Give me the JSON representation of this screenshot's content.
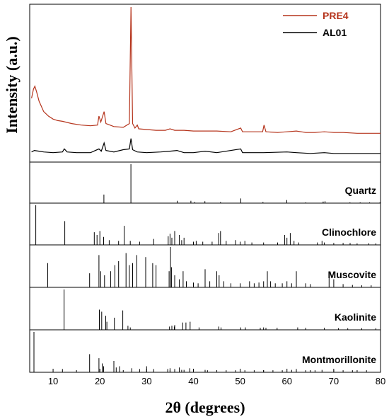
{
  "chart_data": {
    "type": "line",
    "title": "",
    "xlabel": "2θ (degrees)",
    "ylabel": "Intensity (a.u.)",
    "xlim": [
      5,
      80
    ],
    "x_ticks": [
      10,
      20,
      30,
      40,
      50,
      60,
      70,
      80
    ],
    "grid": false,
    "legend": {
      "placement": "top-right",
      "entries": [
        {
          "name": "PRE4",
          "color": "#b5341c"
        },
        {
          "name": "AL01",
          "color": "#000000"
        }
      ]
    },
    "series": [
      {
        "name": "PRE4",
        "color": "#b5341c",
        "points": [
          [
            5.4,
            0.39
          ],
          [
            5.8,
            0.45
          ],
          [
            6.1,
            0.47
          ],
          [
            6.5,
            0.43
          ],
          [
            7,
            0.37
          ],
          [
            8,
            0.3
          ],
          [
            9,
            0.27
          ],
          [
            10,
            0.25
          ],
          [
            11,
            0.24
          ],
          [
            12,
            0.235
          ],
          [
            14,
            0.22
          ],
          [
            16,
            0.21
          ],
          [
            18,
            0.205
          ],
          [
            19.5,
            0.21
          ],
          [
            19.8,
            0.27
          ],
          [
            20.2,
            0.23
          ],
          [
            20.9,
            0.3
          ],
          [
            21.3,
            0.22
          ],
          [
            23,
            0.2
          ],
          [
            25,
            0.195
          ],
          [
            26.3,
            0.22
          ],
          [
            26.65,
            1.0
          ],
          [
            27,
            0.22
          ],
          [
            27.5,
            0.19
          ],
          [
            28,
            0.21
          ],
          [
            28.3,
            0.185
          ],
          [
            30,
            0.18
          ],
          [
            32,
            0.175
          ],
          [
            34,
            0.175
          ],
          [
            35,
            0.185
          ],
          [
            36,
            0.175
          ],
          [
            38,
            0.175
          ],
          [
            40,
            0.17
          ],
          [
            42,
            0.17
          ],
          [
            45,
            0.17
          ],
          [
            48,
            0.165
          ],
          [
            50.1,
            0.19
          ],
          [
            50.5,
            0.165
          ],
          [
            53,
            0.165
          ],
          [
            54.8,
            0.165
          ],
          [
            55.1,
            0.21
          ],
          [
            55.5,
            0.165
          ],
          [
            58,
            0.16
          ],
          [
            60,
            0.165
          ],
          [
            62,
            0.17
          ],
          [
            64,
            0.16
          ],
          [
            66,
            0.16
          ],
          [
            68,
            0.165
          ],
          [
            70,
            0.16
          ],
          [
            72,
            0.16
          ],
          [
            75,
            0.155
          ],
          [
            78,
            0.155
          ],
          [
            80,
            0.155
          ]
        ]
      },
      {
        "name": "AL01",
        "color": "#000000",
        "points": [
          [
            5.4,
            0.03
          ],
          [
            6,
            0.04
          ],
          [
            7,
            0.035
          ],
          [
            8,
            0.03
          ],
          [
            10,
            0.025
          ],
          [
            12,
            0.03
          ],
          [
            12.4,
            0.05
          ],
          [
            13,
            0.03
          ],
          [
            15,
            0.025
          ],
          [
            18,
            0.025
          ],
          [
            19.8,
            0.05
          ],
          [
            20.3,
            0.035
          ],
          [
            20.9,
            0.09
          ],
          [
            21.3,
            0.04
          ],
          [
            23,
            0.03
          ],
          [
            25,
            0.045
          ],
          [
            26.3,
            0.05
          ],
          [
            26.65,
            0.12
          ],
          [
            27,
            0.045
          ],
          [
            28,
            0.03
          ],
          [
            30,
            0.025
          ],
          [
            33,
            0.03
          ],
          [
            35,
            0.035
          ],
          [
            36.5,
            0.04
          ],
          [
            38,
            0.025
          ],
          [
            40,
            0.025
          ],
          [
            42.5,
            0.035
          ],
          [
            45,
            0.025
          ],
          [
            50.1,
            0.05
          ],
          [
            50.5,
            0.025
          ],
          [
            55,
            0.025
          ],
          [
            60,
            0.03
          ],
          [
            62,
            0.025
          ],
          [
            65,
            0.02
          ],
          [
            68,
            0.025
          ],
          [
            70,
            0.02
          ],
          [
            75,
            0.02
          ],
          [
            80,
            0.02
          ]
        ]
      }
    ],
    "reference_panels": [
      {
        "name": "Quartz",
        "peaks": [
          [
            20.86,
            22
          ],
          [
            26.64,
            100
          ],
          [
            36.54,
            6
          ],
          [
            39.46,
            6
          ],
          [
            40.29,
            3
          ],
          [
            42.45,
            5
          ],
          [
            45.79,
            3
          ],
          [
            50.14,
            12
          ],
          [
            54.87,
            3
          ],
          [
            59.96,
            8
          ],
          [
            64.03,
            2
          ],
          [
            67.74,
            4
          ],
          [
            68.14,
            5
          ],
          [
            73.47,
            2
          ],
          [
            75.64,
            2
          ],
          [
            77.67,
            2
          ],
          [
            79.88,
            2
          ]
        ]
      },
      {
        "name": "Clinochlore",
        "peaks": [
          [
            6.3,
            100
          ],
          [
            12.5,
            60
          ],
          [
            18.8,
            32
          ],
          [
            19.4,
            25
          ],
          [
            20.0,
            35
          ],
          [
            20.8,
            20
          ],
          [
            22.0,
            12
          ],
          [
            24.0,
            10
          ],
          [
            25.2,
            48
          ],
          [
            26.5,
            10
          ],
          [
            28.5,
            8
          ],
          [
            31.5,
            15
          ],
          [
            34.6,
            22
          ],
          [
            35.0,
            28
          ],
          [
            35.4,
            18
          ],
          [
            36.0,
            35
          ],
          [
            37.0,
            25
          ],
          [
            37.5,
            12
          ],
          [
            38.0,
            18
          ],
          [
            40.0,
            8
          ],
          [
            40.6,
            10
          ],
          [
            42.0,
            8
          ],
          [
            44.0,
            8
          ],
          [
            45.4,
            30
          ],
          [
            45.8,
            35
          ],
          [
            47.0,
            10
          ],
          [
            49.0,
            12
          ],
          [
            50.0,
            8
          ],
          [
            51.0,
            10
          ],
          [
            52.5,
            6
          ],
          [
            55.0,
            6
          ],
          [
            58.0,
            6
          ],
          [
            59.5,
            25
          ],
          [
            60.0,
            18
          ],
          [
            60.7,
            30
          ],
          [
            61.5,
            10
          ],
          [
            62.5,
            6
          ],
          [
            66.5,
            6
          ],
          [
            67.5,
            10
          ],
          [
            68.0,
            6
          ],
          [
            70.0,
            5
          ],
          [
            72.0,
            5
          ],
          [
            73.5,
            5
          ],
          [
            75.0,
            4
          ],
          [
            77.5,
            4
          ],
          [
            79.0,
            4
          ]
        ]
      },
      {
        "name": "Muscovite",
        "peaks": [
          [
            8.85,
            60
          ],
          [
            17.8,
            35
          ],
          [
            19.8,
            80
          ],
          [
            20.2,
            40
          ],
          [
            21.0,
            30
          ],
          [
            22.3,
            40
          ],
          [
            23.2,
            55
          ],
          [
            24.0,
            65
          ],
          [
            25.6,
            85
          ],
          [
            26.3,
            55
          ],
          [
            27.0,
            60
          ],
          [
            27.9,
            80
          ],
          [
            29.8,
            75
          ],
          [
            31.3,
            60
          ],
          [
            32.0,
            55
          ],
          [
            34.8,
            40
          ],
          [
            35.1,
            100
          ],
          [
            35.3,
            50
          ],
          [
            36.0,
            30
          ],
          [
            37.0,
            20
          ],
          [
            37.8,
            40
          ],
          [
            38.5,
            15
          ],
          [
            40.0,
            12
          ],
          [
            41.0,
            10
          ],
          [
            42.5,
            45
          ],
          [
            43.5,
            15
          ],
          [
            45.0,
            40
          ],
          [
            45.5,
            30
          ],
          [
            46.5,
            15
          ],
          [
            48.0,
            10
          ],
          [
            50.0,
            10
          ],
          [
            52.0,
            15
          ],
          [
            53.0,
            10
          ],
          [
            54.0,
            12
          ],
          [
            55.0,
            15
          ],
          [
            55.8,
            40
          ],
          [
            56.5,
            15
          ],
          [
            57.5,
            10
          ],
          [
            59.0,
            10
          ],
          [
            60.0,
            15
          ],
          [
            61.0,
            10
          ],
          [
            62.0,
            40
          ],
          [
            64.0,
            10
          ],
          [
            65.0,
            8
          ],
          [
            69.0,
            25
          ],
          [
            70.0,
            20
          ],
          [
            72.0,
            8
          ],
          [
            74.0,
            6
          ],
          [
            76.0,
            5
          ],
          [
            78.0,
            5
          ]
        ]
      },
      {
        "name": "Kaolinite",
        "peaks": [
          [
            12.35,
            100
          ],
          [
            19.9,
            50
          ],
          [
            20.4,
            45
          ],
          [
            21.25,
            35
          ],
          [
            21.5,
            20
          ],
          [
            23.1,
            30
          ],
          [
            24.9,
            48
          ],
          [
            26.0,
            10
          ],
          [
            26.5,
            6
          ],
          [
            34.9,
            8
          ],
          [
            35.4,
            10
          ],
          [
            35.9,
            8
          ],
          [
            36.0,
            12
          ],
          [
            37.7,
            18
          ],
          [
            38.4,
            18
          ],
          [
            39.3,
            20
          ],
          [
            41.2,
            6
          ],
          [
            45.4,
            8
          ],
          [
            45.9,
            6
          ],
          [
            50.1,
            6
          ],
          [
            51.1,
            6
          ],
          [
            54.3,
            5
          ],
          [
            55.0,
            6
          ],
          [
            55.5,
            5
          ],
          [
            57.9,
            5
          ],
          [
            62.3,
            6
          ],
          [
            64.0,
            5
          ],
          [
            68.0,
            5
          ],
          [
            71.0,
            4
          ],
          [
            73.0,
            4
          ],
          [
            76.0,
            4
          ],
          [
            79.0,
            4
          ]
        ]
      },
      {
        "name": "Montmorillonite",
        "peaks": [
          [
            5.9,
            100
          ],
          [
            12.0,
            8
          ],
          [
            17.8,
            45
          ],
          [
            19.8,
            35
          ],
          [
            20.5,
            22
          ],
          [
            20.8,
            15
          ],
          [
            23.0,
            28
          ],
          [
            23.5,
            12
          ],
          [
            24.2,
            15
          ],
          [
            26.8,
            10
          ],
          [
            28.5,
            8
          ],
          [
            30.0,
            15
          ],
          [
            31.5,
            8
          ],
          [
            34.5,
            8
          ],
          [
            35.0,
            10
          ],
          [
            36.0,
            8
          ],
          [
            37.0,
            12
          ],
          [
            37.5,
            6
          ],
          [
            38.0,
            6
          ],
          [
            39.2,
            10
          ],
          [
            40.0,
            6
          ],
          [
            42.5,
            6
          ],
          [
            43.0,
            5
          ],
          [
            45.0,
            5
          ],
          [
            47.0,
            5
          ],
          [
            49.0,
            5
          ],
          [
            51.0,
            5
          ],
          [
            53.0,
            5
          ],
          [
            55.0,
            5
          ],
          [
            57.0,
            5
          ],
          [
            59.0,
            5
          ],
          [
            61.0,
            6
          ],
          [
            62.0,
            8
          ],
          [
            64.0,
            5
          ],
          [
            66.0,
            5
          ],
          [
            67.5,
            6
          ],
          [
            70.0,
            5
          ],
          [
            72.0,
            5
          ],
          [
            74.0,
            5
          ],
          [
            77.0,
            5
          ]
        ]
      }
    ]
  }
}
